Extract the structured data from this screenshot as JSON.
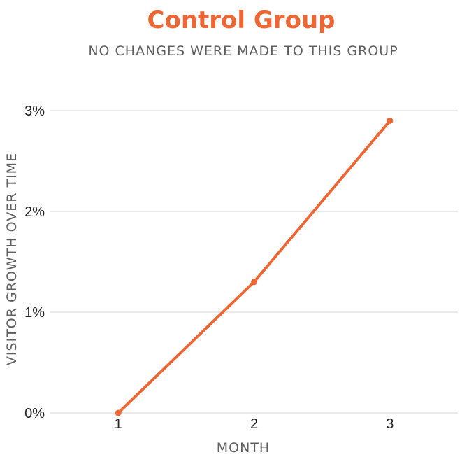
{
  "colors": {
    "accent": "#ee6633",
    "grid": "#d4d4d4",
    "title": "#ee6633",
    "subtitle": "#5f5f5f"
  },
  "chart_data": {
    "type": "line",
    "title": "Control Group",
    "subtitle": "NO CHANGES WERE MADE TO THIS GROUP",
    "xlabel": "MONTH",
    "ylabel": "VISITOR GROWTH OVER TIME",
    "x": [
      1,
      2,
      3
    ],
    "x_tick_labels": [
      "1",
      "2",
      "3"
    ],
    "xlim": [
      0.5,
      3.5
    ],
    "ylim": [
      0,
      3
    ],
    "y_ticks": [
      0,
      1,
      2,
      3
    ],
    "y_tick_labels": [
      "0%",
      "1%",
      "2%",
      "3%"
    ],
    "grid": true,
    "legend": "none",
    "series": [
      {
        "values": [
          0,
          1.3,
          2.9
        ],
        "color": "#ee6633"
      }
    ]
  }
}
